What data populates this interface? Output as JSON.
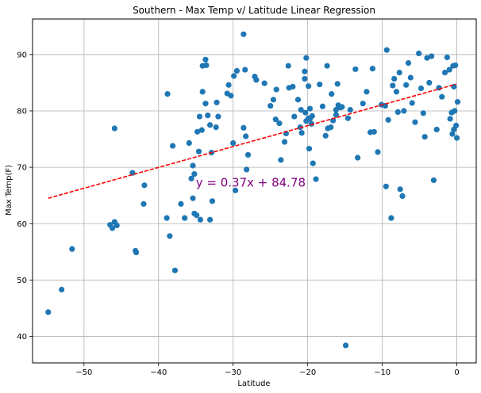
{
  "chart_data": {
    "type": "scatter",
    "title": "Southern - Max Temp v/ Latitude Linear Regression",
    "xlabel": "Latitude",
    "ylabel": "Max Temp(F)",
    "xlim": [
      -56.9,
      2.6
    ],
    "ylim": [
      35.3,
      96.3
    ],
    "xticks": [
      -50,
      -40,
      -30,
      -20,
      -10,
      0
    ],
    "yticks": [
      40,
      50,
      60,
      70,
      80,
      90
    ],
    "grid": true,
    "point_color": "#1f77b4",
    "regression": {
      "slope": 0.37,
      "intercept": 84.78,
      "x_range": [
        -54.8,
        -0.1
      ],
      "color": "#ff0000",
      "style": "dashed",
      "equation": "y = 0.37x + 84.78",
      "equation_color": "#800080",
      "equation_position": [
        -35.0,
        67.3
      ]
    },
    "points": [
      [
        -54.8,
        44.3
      ],
      [
        -53.0,
        48.3
      ],
      [
        -51.6,
        55.5
      ],
      [
        -46.5,
        59.8
      ],
      [
        -46.2,
        59.2
      ],
      [
        -45.9,
        60.3
      ],
      [
        -45.6,
        59.7
      ],
      [
        -45.9,
        76.9
      ],
      [
        -43.5,
        69.0
      ],
      [
        -43.1,
        55.2
      ],
      [
        -43.0,
        54.9
      ],
      [
        -41.9,
        66.8
      ],
      [
        -42.0,
        63.5
      ],
      [
        -38.9,
        61.0
      ],
      [
        -38.8,
        83.0
      ],
      [
        -38.5,
        57.8
      ],
      [
        -38.1,
        73.8
      ],
      [
        -37.8,
        51.7
      ],
      [
        -37.0,
        63.5
      ],
      [
        -35.4,
        64.5
      ],
      [
        -36.5,
        61.0
      ],
      [
        -35.9,
        74.3
      ],
      [
        -35.6,
        68.0
      ],
      [
        -35.2,
        61.8
      ],
      [
        -34.9,
        61.5
      ],
      [
        -34.4,
        60.7
      ],
      [
        -35.4,
        70.3
      ],
      [
        -35.2,
        68.8
      ],
      [
        -34.6,
        72.8
      ],
      [
        -34.1,
        83.4
      ],
      [
        -34.2,
        76.6
      ],
      [
        -34.8,
        76.3
      ],
      [
        -34.5,
        79.0
      ],
      [
        -33.7,
        81.3
      ],
      [
        -33.4,
        79.2
      ],
      [
        -34.1,
        88.0
      ],
      [
        -33.6,
        88.1
      ],
      [
        -33.7,
        89.1
      ],
      [
        -33.1,
        77.5
      ],
      [
        -32.9,
        72.6
      ],
      [
        -33.1,
        60.7
      ],
      [
        -32.8,
        64.0
      ],
      [
        -32.2,
        81.5
      ],
      [
        -32.3,
        77.1
      ],
      [
        -32.0,
        79.0
      ],
      [
        -30.8,
        83.1
      ],
      [
        -30.6,
        84.6
      ],
      [
        -29.9,
        86.2
      ],
      [
        -30.3,
        82.7
      ],
      [
        -30.0,
        74.3
      ],
      [
        -29.5,
        87.1
      ],
      [
        -29.7,
        65.9
      ],
      [
        -28.6,
        93.6
      ],
      [
        -28.4,
        87.3
      ],
      [
        -28.0,
        72.2
      ],
      [
        -28.6,
        77.0
      ],
      [
        -28.3,
        75.5
      ],
      [
        -28.2,
        69.6
      ],
      [
        -27.1,
        86.1
      ],
      [
        -26.9,
        85.5
      ],
      [
        -25.8,
        84.9
      ],
      [
        -25.0,
        80.9
      ],
      [
        -24.6,
        82.0
      ],
      [
        -24.3,
        78.5
      ],
      [
        -23.8,
        77.8
      ],
      [
        -23.1,
        74.5
      ],
      [
        -23.6,
        71.3
      ],
      [
        -22.9,
        76.0
      ],
      [
        -22.5,
        84.1
      ],
      [
        -21.8,
        79.0
      ],
      [
        -21.0,
        77.1
      ],
      [
        -20.8,
        76.1
      ],
      [
        -20.9,
        80.2
      ],
      [
        -21.3,
        82.0
      ],
      [
        -20.4,
        87.0
      ],
      [
        -20.2,
        89.4
      ],
      [
        -20.4,
        85.7
      ],
      [
        -19.9,
        84.4
      ],
      [
        -19.7,
        78.6
      ],
      [
        -19.4,
        79.1
      ],
      [
        -20.3,
        79.7
      ],
      [
        -19.7,
        80.4
      ],
      [
        -20.2,
        78.2
      ],
      [
        -19.9,
        78.7
      ],
      [
        -19.5,
        77.7
      ],
      [
        -19.8,
        73.3
      ],
      [
        -19.3,
        70.7
      ],
      [
        -18.9,
        67.9
      ],
      [
        -17.6,
        75.6
      ],
      [
        -17.3,
        76.9
      ],
      [
        -16.9,
        77.1
      ],
      [
        -16.6,
        78.3
      ],
      [
        -16.2,
        79.3
      ],
      [
        -16.2,
        80.2
      ],
      [
        -15.6,
        80.6
      ],
      [
        -15.9,
        81.0
      ],
      [
        -15.4,
        80.7
      ],
      [
        -14.3,
        80.2
      ],
      [
        -14.6,
        78.7
      ],
      [
        -14.9,
        38.4
      ],
      [
        -13.3,
        71.7
      ],
      [
        -12.6,
        81.3
      ],
      [
        -12.1,
        83.4
      ],
      [
        -11.6,
        76.2
      ],
      [
        -11.1,
        76.3
      ],
      [
        -10.6,
        72.7
      ],
      [
        -10.1,
        81.1
      ],
      [
        -9.6,
        80.9
      ],
      [
        -9.2,
        78.4
      ],
      [
        -9.5,
        66.6
      ],
      [
        -8.8,
        61.0
      ],
      [
        -8.6,
        84.5
      ],
      [
        -8.4,
        85.7
      ],
      [
        -8.1,
        83.4
      ],
      [
        -7.7,
        86.8
      ],
      [
        -7.9,
        79.8
      ],
      [
        -7.6,
        66.1
      ],
      [
        -7.3,
        64.9
      ],
      [
        -7.1,
        80.0
      ],
      [
        -6.8,
        84.6
      ],
      [
        -6.5,
        88.5
      ],
      [
        -6.2,
        85.9
      ],
      [
        -6.0,
        81.4
      ],
      [
        -5.6,
        78.0
      ],
      [
        -5.1,
        90.2
      ],
      [
        -4.8,
        84.0
      ],
      [
        -4.5,
        79.6
      ],
      [
        -4.3,
        75.4
      ],
      [
        -4.0,
        89.4
      ],
      [
        -3.7,
        85.0
      ],
      [
        -3.4,
        89.7
      ],
      [
        -3.1,
        67.7
      ],
      [
        -2.7,
        76.7
      ],
      [
        -2.4,
        84.1
      ],
      [
        -2.0,
        82.5
      ],
      [
        -1.6,
        86.8
      ],
      [
        -1.3,
        89.5
      ],
      [
        -0.9,
        78.6
      ],
      [
        -0.6,
        75.9
      ],
      [
        -0.4,
        84.3
      ],
      [
        -1.0,
        87.3
      ],
      [
        -0.7,
        79.7
      ],
      [
        -0.3,
        80.0
      ],
      [
        -0.1,
        77.4
      ],
      [
        0.0,
        75.2
      ],
      [
        -0.4,
        76.7
      ],
      [
        -0.2,
        88.1
      ],
      [
        -0.5,
        88.0
      ],
      [
        0.1,
        81.6
      ],
      [
        -9.4,
        90.8
      ],
      [
        -11.3,
        87.5
      ],
      [
        -13.6,
        87.4
      ],
      [
        -16.0,
        84.8
      ],
      [
        -17.4,
        88.0
      ],
      [
        -18.4,
        84.7
      ],
      [
        -22.0,
        84.3
      ],
      [
        -22.6,
        88.0
      ],
      [
        -24.2,
        83.8
      ],
      [
        -18.0,
        80.8
      ],
      [
        -16.8,
        83.0
      ]
    ]
  }
}
